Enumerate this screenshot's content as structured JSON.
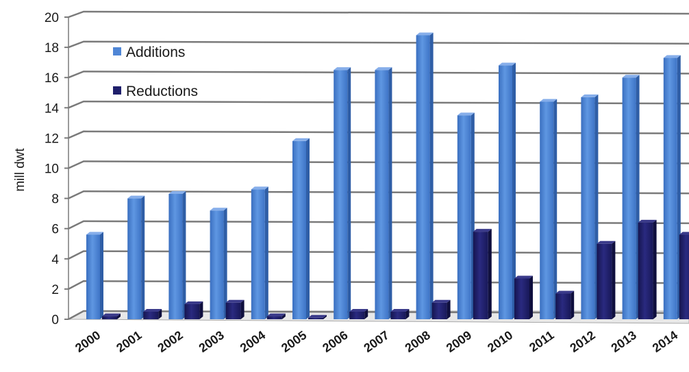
{
  "chart_data": {
    "type": "bar",
    "ylabel": "mill dwt",
    "ylim": [
      0,
      20
    ],
    "yticks": [
      0,
      2,
      4,
      6,
      8,
      10,
      12,
      14,
      16,
      18,
      20
    ],
    "grid": true,
    "legend_position": "top-left",
    "categories": [
      "2000",
      "2001",
      "2002",
      "2003",
      "2004",
      "2005",
      "2006",
      "2007",
      "2008",
      "2009",
      "2010",
      "2011",
      "2012",
      "2013",
      "2014"
    ],
    "series": [
      {
        "name": "Additions",
        "color": "#4f86d6",
        "values": [
          5.6,
          8.0,
          8.3,
          7.2,
          8.6,
          11.8,
          16.5,
          16.5,
          18.8,
          13.5,
          16.8,
          14.4,
          14.7,
          16.0,
          17.3
        ]
      },
      {
        "name": "Reductions",
        "color": "#1f1f6b",
        "values": [
          0.2,
          0.5,
          1.0,
          1.1,
          0.2,
          0.1,
          0.5,
          0.5,
          1.1,
          5.8,
          2.7,
          1.7,
          5.0,
          6.4,
          5.6
        ]
      }
    ]
  }
}
